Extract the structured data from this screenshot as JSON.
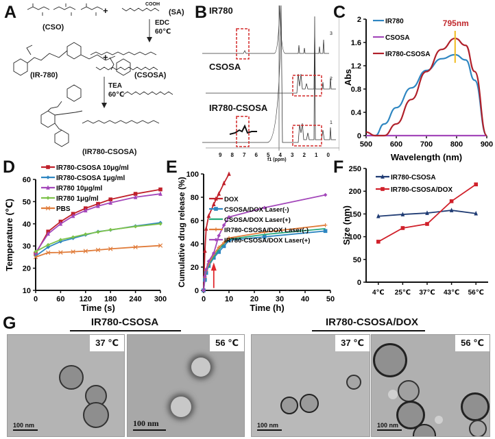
{
  "figure": {
    "panel_labels": [
      "A",
      "B",
      "C",
      "D",
      "E",
      "F",
      "G"
    ]
  },
  "panel_a": {
    "compounds": {
      "cso": "(CSO)",
      "sa": "(SA)",
      "ir780": "(IR-780)",
      "csosa": "(CSOSA)",
      "ir780_csosa": "(IR780-CSOSA)"
    },
    "plus": "+",
    "step1": {
      "reagent": "EDC",
      "temp": "60℃"
    },
    "step2": {
      "reagent": "TEA",
      "temp": "60℃"
    },
    "sa_group": "COOH"
  },
  "panel_b": {
    "spectra_labels": [
      "IR780",
      "CSOSA",
      "IR780-CSOSA"
    ],
    "xlabel": "f1 (ppm)",
    "x_ticks": [
      "9",
      "8",
      "7",
      "6",
      "5",
      "4",
      "3",
      "2",
      "1",
      "0"
    ],
    "y_ticks": [
      "3",
      "2",
      "1"
    ]
  },
  "chart_data": [
    {
      "panel": "C",
      "type": "line",
      "xlabel": "Wavelength (nm)",
      "ylabel": "Abs",
      "xlim": [
        500,
        900
      ],
      "ylim": [
        0,
        2
      ],
      "x_ticks": [
        "500",
        "600",
        "700",
        "800",
        "900"
      ],
      "y_ticks": [
        "0",
        "0.4",
        "0.8",
        "1.2",
        "1.6",
        "2"
      ],
      "annotation": "795nm",
      "annotation_color": "#c0282d",
      "marker_line_color": "#f2c12e",
      "legend_position": "upper-left",
      "x": [
        500,
        530,
        560,
        600,
        650,
        700,
        750,
        795,
        830,
        860,
        900
      ],
      "series": [
        {
          "name": "IR780",
          "color": "#2e86c1",
          "values": [
            null,
            0.0,
            0.2,
            0.48,
            0.82,
            1.12,
            1.32,
            1.39,
            1.3,
            0.95,
            0.0
          ]
        },
        {
          "name": "CSOSA",
          "color": "#a347ba",
          "values": [
            0,
            0,
            0,
            0,
            0,
            0,
            0,
            0,
            0,
            0,
            0
          ]
        },
        {
          "name": "IR780-CSOSA",
          "color": "#b0202a",
          "values": [
            0.06,
            0.0,
            0.0,
            0.2,
            0.62,
            1.1,
            1.48,
            1.67,
            1.55,
            1.1,
            0.0
          ]
        }
      ]
    },
    {
      "panel": "D",
      "type": "line",
      "xlabel": "Time (s)",
      "ylabel": "Temperature (℃)",
      "xlim": [
        0,
        300
      ],
      "ylim": [
        10,
        60
      ],
      "x_ticks": [
        "0",
        "60",
        "120",
        "180",
        "240",
        "300"
      ],
      "y_ticks": [
        "10",
        "20",
        "30",
        "40",
        "50",
        "60"
      ],
      "legend_position": "upper-left",
      "x": [
        0,
        30,
        60,
        90,
        120,
        150,
        180,
        240,
        300
      ],
      "series": [
        {
          "name": "IR780-CSOSA 10μg/ml",
          "color": "#c0202a",
          "marker": "square",
          "values": [
            26.5,
            36.5,
            41,
            44.5,
            47,
            49,
            51,
            53.5,
            55.5
          ]
        },
        {
          "name": "IR780-CSOSA 1μg/ml",
          "color": "#2e86c1",
          "marker": "diamond",
          "values": [
            25.5,
            29.5,
            32,
            33.5,
            35,
            36.5,
            37.2,
            39,
            40.5
          ]
        },
        {
          "name": "IR780 10μg/ml",
          "color": "#a347ba",
          "marker": "triangle",
          "values": [
            27,
            35.5,
            40,
            43.5,
            46,
            48,
            49.5,
            52,
            53.5
          ]
        },
        {
          "name": "IR780 1μg/ml",
          "color": "#7dc24a",
          "marker": "diamond",
          "values": [
            27.5,
            30.5,
            32.8,
            34,
            35.3,
            36.3,
            37.3,
            38.8,
            40
          ]
        },
        {
          "name": "PBS",
          "color": "#e07b39",
          "marker": "x",
          "values": [
            25,
            27,
            27.1,
            27.4,
            27.7,
            28.2,
            28.7,
            29.5,
            30.2
          ]
        }
      ]
    },
    {
      "panel": "E",
      "type": "line",
      "xlabel": "Time (h)",
      "ylabel": "Cumulative drug release (%)",
      "xlim": [
        0,
        50
      ],
      "ylim": [
        0,
        100
      ],
      "x_ticks": [
        "0",
        "10",
        "20",
        "30",
        "40",
        "50"
      ],
      "y_ticks": [
        "0",
        "20",
        "40",
        "60",
        "80",
        "100"
      ],
      "annotation": "laser arrow at ~4 h",
      "annotation_color": "#e0282d",
      "legend_position": "lower-right",
      "series": [
        {
          "name": "DOX",
          "color": "#c0202a",
          "marker": "triangle",
          "x": [
            0,
            0.5,
            1,
            2,
            4,
            6,
            8,
            10
          ],
          "values": [
            0,
            34,
            53,
            64,
            74,
            83,
            92,
            100
          ]
        },
        {
          "name": "CSOSA/DOX Laser(-)",
          "color": "#2e86c1",
          "marker": "square",
          "x": [
            0,
            0.5,
            1,
            2,
            4,
            6,
            8,
            10,
            24,
            48
          ],
          "values": [
            0,
            9,
            15,
            21,
            28,
            33,
            38,
            43,
            46,
            51
          ]
        },
        {
          "name": "CSOSA/DOX Laser(+)",
          "color": "#23a87a",
          "marker": "none",
          "x": [
            0,
            0.5,
            1,
            2,
            4,
            6,
            8,
            10,
            24,
            48
          ],
          "values": [
            0,
            10,
            16,
            22,
            29,
            35,
            40,
            44,
            48,
            53
          ]
        },
        {
          "name": "IR780-CSOSA/DOX Laser(-)",
          "color": "#e07b39",
          "marker": "plus",
          "x": [
            0,
            0.5,
            1,
            2,
            4,
            6,
            8,
            10,
            24,
            48
          ],
          "values": [
            0,
            11,
            17,
            23,
            31,
            37,
            41,
            45,
            50,
            56
          ]
        },
        {
          "name": "IR780-CSOSA/DOX Laser(+)",
          "color": "#a347ba",
          "marker": "diamond",
          "x": [
            0,
            0.5,
            1,
            2,
            4,
            6,
            8,
            10,
            24,
            48
          ],
          "values": [
            0,
            12,
            18,
            25,
            32,
            47,
            56,
            63,
            71,
            82
          ]
        }
      ]
    },
    {
      "panel": "F",
      "type": "line",
      "xlabel": "",
      "ylabel": "Size (nm)",
      "ylim": [
        0,
        250
      ],
      "categories": [
        "4℃",
        "25℃",
        "37℃",
        "43℃",
        "56℃"
      ],
      "y_ticks": [
        "0",
        "50",
        "100",
        "150",
        "200",
        "250"
      ],
      "legend_position": "upper-left",
      "series": [
        {
          "name": "IR780-CSOSA",
          "color": "#1f3b73",
          "marker": "triangle",
          "values": [
            145,
            149,
            152,
            158,
            151
          ]
        },
        {
          "name": "IR780-CSOSA/DOX",
          "color": "#d0202a",
          "marker": "square",
          "values": [
            89,
            119,
            128,
            178,
            215
          ]
        }
      ]
    }
  ],
  "panel_g": {
    "groups": [
      {
        "title": "IR780-CSOSA",
        "images": [
          {
            "temp": "37 ℃",
            "scale": "100 nm"
          },
          {
            "temp": "56 ℃",
            "scale": "100 nm"
          }
        ]
      },
      {
        "title": "IR780-CSOSA/DOX",
        "images": [
          {
            "temp": "37 ℃",
            "scale": "100 nm"
          },
          {
            "temp": "56 ℃",
            "scale": "100 nm"
          }
        ]
      }
    ]
  }
}
